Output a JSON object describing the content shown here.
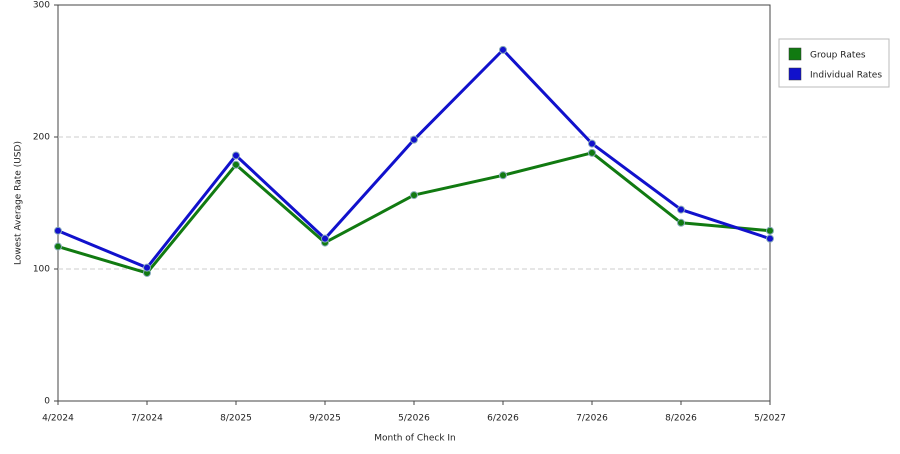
{
  "chart_data": {
    "type": "line",
    "x_label": "Month of Check In",
    "y_label": "Lowest Average Rate (USD)",
    "categories": [
      "4/2024",
      "7/2024",
      "8/2025",
      "9/2025",
      "5/2026",
      "6/2026",
      "7/2026",
      "8/2026",
      "5/2027"
    ],
    "series": [
      {
        "name": "Group Rates",
        "color": "#117a11",
        "values": [
          117,
          97,
          179,
          120,
          156,
          171,
          188,
          135,
          129
        ]
      },
      {
        "name": "Individual Rates",
        "color": "#1111cc",
        "values": [
          129,
          101,
          186,
          123,
          198,
          266,
          195,
          145,
          123
        ]
      }
    ],
    "ylim": [
      0,
      300
    ],
    "yticks": [
      0,
      100,
      200,
      300
    ],
    "grid": true,
    "legend": "right"
  }
}
